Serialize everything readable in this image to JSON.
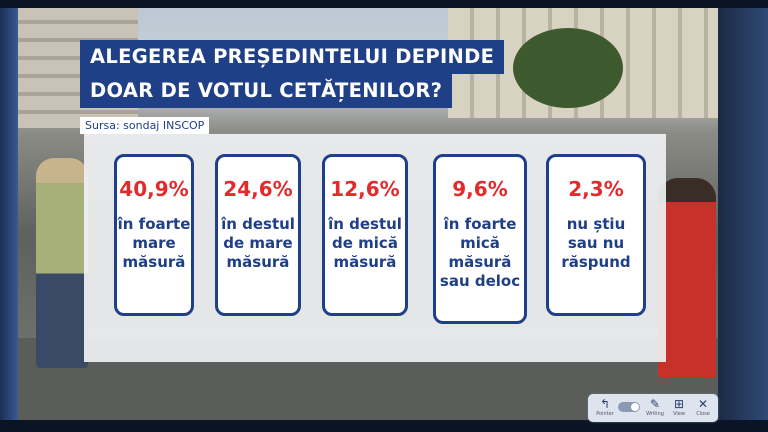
{
  "title": {
    "line1": "ALEGEREA PREȘEDINTELUI DEPINDE",
    "line2": "DOAR DE VOTUL CETĂȚENILOR?"
  },
  "source": "Sursa: sondaj INSCOP",
  "colors": {
    "title_bg": "#1f3f86",
    "card_border": "#1f3f86",
    "value_text": "#e32b2b",
    "label_text": "#1f3f86"
  },
  "chart_data": {
    "type": "table",
    "title": "ALEGEREA PREȘEDINTELUI DEPINDE DOAR DE VOTUL CETĂȚENILOR?",
    "unit": "%",
    "categories": [
      "în foarte mare măsură",
      "în destul de mare măsură",
      "în destul de mică măsură",
      "în foarte mică măsură sau deloc",
      "nu știu sau nu răspund"
    ],
    "values": [
      40.9,
      24.6,
      12.6,
      9.6,
      2.3
    ],
    "display_values": [
      "40,9%",
      "24,6%",
      "12,6%",
      "9,6%",
      "2,3%"
    ],
    "display_labels": [
      "în foarte\nmare\nmăsură",
      "în destul\nde mare\nmăsură",
      "în destul\nde mică\nmăsură",
      "în foarte\nmică\nmăsură\nsau deloc",
      "nu știu\nsau nu\nrăspund"
    ]
  },
  "toolbar": {
    "items": [
      {
        "icon": "pointer-icon",
        "label": "Pointer"
      },
      {
        "icon": "toggle-icon",
        "label": ""
      },
      {
        "icon": "pen-icon",
        "label": "Writing"
      },
      {
        "icon": "view-icon",
        "label": "View"
      },
      {
        "icon": "close-icon",
        "label": "Close"
      }
    ]
  }
}
